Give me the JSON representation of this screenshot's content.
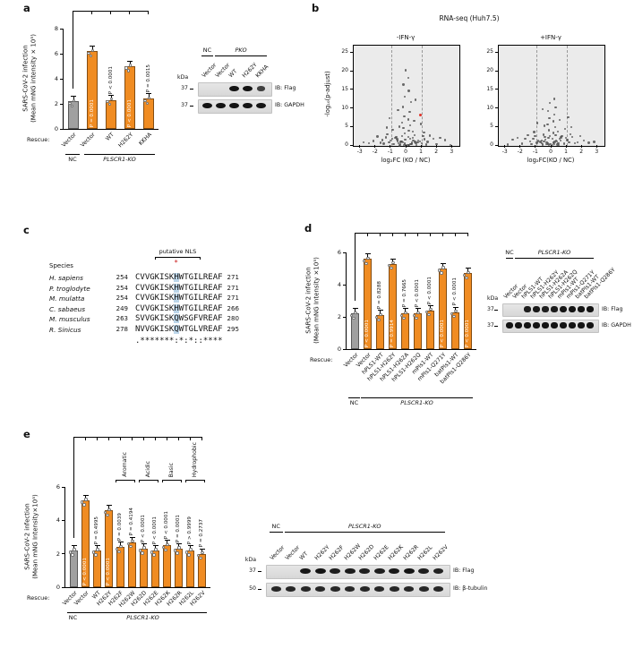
{
  "figure": {
    "accent_orange": "#F08C22",
    "bar_gray": "#A0A0A0",
    "highlight_blue": "#BCD6EA",
    "band_color": "#141414",
    "volcano_bg": "#EBEBEB"
  },
  "panel_a": {
    "label": "a",
    "chart": {
      "type": "bar",
      "ylabel_line1": "SARS-CoV-2 infection",
      "ylabel_line2": "(Mean mNG intensity × 10⁵)",
      "ymax": 8,
      "yticks": [
        0,
        2,
        4,
        6,
        8
      ],
      "categories": [
        "Vector",
        "Vector",
        "WT",
        "H262Y",
        "KKHA"
      ],
      "values": [
        2.2,
        6.2,
        2.3,
        5.0,
        2.4
      ],
      "colors": [
        "gray",
        "orange",
        "orange",
        "orange",
        "orange"
      ],
      "p_values": [
        null,
        "P = 0.0001",
        "P < 0.0001",
        "P < 0.0001",
        "P = 0.0015"
      ],
      "p_inside": [
        false,
        true,
        false,
        true,
        false
      ],
      "rescue_label": "Rescue:",
      "groups": [
        {
          "label": "NC",
          "italic": false,
          "from": 0,
          "to": 0
        },
        {
          "label": "PLSCR1-KO",
          "italic": true,
          "from": 1,
          "to": 4
        }
      ]
    },
    "blot": {
      "group_labels": [
        {
          "label": "NC",
          "italic": false,
          "from": 0,
          "to": 0
        },
        {
          "label": "PKO",
          "italic": true,
          "from": 1,
          "to": 4
        }
      ],
      "lanes": [
        "Vector",
        "Vector",
        "WT",
        "H262Y",
        "KKHA"
      ],
      "kda_header": "kDa",
      "strips": [
        {
          "kda": "37",
          "ib": "IB: Flag",
          "bands": [
            0,
            0,
            1,
            1,
            0.55
          ]
        },
        {
          "kda": "37",
          "ib": "IB: GAPDH",
          "bands": [
            1,
            1,
            1,
            1,
            1
          ]
        }
      ]
    }
  },
  "panel_b": {
    "label": "b",
    "title": "RNA-seq (Huh7.5)",
    "ylabel": "-log₁₀(p-adjust)",
    "plots": [
      {
        "title": "-IFN-γ",
        "xlabel": "log₂FC (KO / NC)",
        "xlim": [
          -3.45,
          3.45
        ],
        "ylim": [
          0,
          27
        ],
        "xticks": [
          -3,
          -2,
          -1,
          0,
          1,
          2,
          3
        ],
        "yticks": [
          0,
          5,
          10,
          15,
          20,
          25
        ],
        "vlines": [
          -1,
          1
        ],
        "points": [
          [
            -0.05,
            0.1
          ],
          [
            0.08,
            0.3
          ],
          [
            -0.12,
            0.6
          ],
          [
            0.15,
            0.2
          ],
          [
            -0.22,
            0.9
          ],
          [
            0.26,
            0.5
          ],
          [
            -0.31,
            1.2
          ],
          [
            0.34,
            0.8
          ],
          [
            -0.42,
            0.4
          ],
          [
            0.45,
            1.5
          ],
          [
            -0.52,
            0.7
          ],
          [
            0.55,
            1.1
          ],
          [
            -0.62,
            1.8
          ],
          [
            0.65,
            0.3
          ],
          [
            -0.72,
            2.1
          ],
          [
            0.75,
            1.4
          ],
          [
            -0.08,
            1.7
          ],
          [
            0.12,
            2.4
          ],
          [
            -0.18,
            0.25
          ],
          [
            0.22,
            1.9
          ],
          [
            -0.28,
            2.7
          ],
          [
            0.32,
            0.45
          ],
          [
            -0.38,
            1.05
          ],
          [
            0.42,
            2.2
          ],
          [
            -0.48,
            0.15
          ],
          [
            0.52,
            2.9
          ],
          [
            -0.58,
            1.35
          ],
          [
            0.62,
            0.65
          ],
          [
            -0.68,
            2.45
          ],
          [
            0.72,
            0.95
          ],
          [
            -0.85,
            0.5
          ],
          [
            0.88,
            1.2
          ],
          [
            -0.95,
            2.0
          ],
          [
            0.98,
            0.7
          ],
          [
            -1.05,
            1.5
          ],
          [
            1.08,
            2.6
          ],
          [
            -1.15,
            0.9
          ],
          [
            1.18,
            1.8
          ],
          [
            -1.25,
            3.1
          ],
          [
            1.28,
            0.4
          ],
          [
            -1.35,
            2.3
          ],
          [
            1.38,
            1.1
          ],
          [
            -1.48,
            0.6
          ],
          [
            1.52,
            2.8
          ],
          [
            -1.58,
            1.6
          ],
          [
            -1.7,
            0.8
          ],
          [
            1.75,
            1.9
          ],
          [
            -1.9,
            2.5
          ],
          [
            1.95,
            0.5
          ],
          [
            -2.15,
            1.3
          ],
          [
            2.2,
            2.1
          ],
          [
            -2.45,
            0.7
          ],
          [
            2.5,
            1.6
          ],
          [
            -2.8,
            1.0
          ],
          [
            2.85,
            0.3
          ],
          [
            -0.1,
            3.4
          ],
          [
            0.15,
            4.1
          ],
          [
            -0.2,
            4.8
          ],
          [
            0.25,
            5.6
          ],
          [
            -0.3,
            6.3
          ],
          [
            0.1,
            7.1
          ],
          [
            -0.15,
            8.0
          ],
          [
            0.2,
            9.2
          ],
          [
            -0.25,
            10.5
          ],
          [
            0.3,
            11.8
          ],
          [
            -0.1,
            13.2
          ],
          [
            0.15,
            14.8
          ],
          [
            -0.2,
            16.5
          ],
          [
            0.1,
            18.3
          ],
          [
            -0.05,
            20.4
          ],
          [
            0.4,
            3.8
          ],
          [
            -0.45,
            5.2
          ],
          [
            0.5,
            6.8
          ],
          [
            -0.55,
            9.6
          ],
          [
            0.6,
            12.4
          ],
          [
            -0.9,
            4.4
          ],
          [
            0.95,
            5.9
          ],
          [
            -1.1,
            7.4
          ],
          [
            1.15,
            3.6
          ],
          [
            -1.3,
            4.9
          ]
        ],
        "red_points": [
          [
            0.92,
            8.2
          ]
        ]
      },
      {
        "title": "+IFN-γ",
        "xlabel": "log₂FC(KO / NC)",
        "xlim": [
          -3.45,
          3.45
        ],
        "ylim": [
          0,
          27
        ],
        "xticks": [
          -3,
          -2,
          -1,
          0,
          1,
          2,
          3
        ],
        "yticks": [
          0,
          5,
          10,
          15,
          20,
          25
        ],
        "vlines": [
          -1,
          1
        ],
        "points": [
          [
            0.06,
            0.2
          ],
          [
            -0.09,
            0.5
          ],
          [
            0.13,
            0.8
          ],
          [
            -0.16,
            0.3
          ],
          [
            0.21,
            1.1
          ],
          [
            -0.24,
            0.6
          ],
          [
            0.29,
            1.4
          ],
          [
            -0.33,
            0.9
          ],
          [
            0.37,
            0.4
          ],
          [
            -0.41,
            1.7
          ],
          [
            0.44,
            0.7
          ],
          [
            -0.49,
            1.2
          ],
          [
            0.53,
            2.0
          ],
          [
            -0.57,
            0.35
          ],
          [
            0.61,
            2.3
          ],
          [
            -0.66,
            1.5
          ],
          [
            0.07,
            1.9
          ],
          [
            -0.11,
            2.6
          ],
          [
            0.17,
            0.45
          ],
          [
            -0.21,
            2.1
          ],
          [
            0.27,
            2.9
          ],
          [
            -0.31,
            0.55
          ],
          [
            0.36,
            1.25
          ],
          [
            -0.44,
            2.4
          ],
          [
            0.47,
            0.18
          ],
          [
            -0.54,
            3.0
          ],
          [
            0.58,
            1.45
          ],
          [
            -0.63,
            0.75
          ],
          [
            0.67,
            2.6
          ],
          [
            -0.73,
            1.05
          ],
          [
            0.82,
            0.6
          ],
          [
            -0.87,
            1.3
          ],
          [
            0.93,
            2.1
          ],
          [
            -0.97,
            0.8
          ],
          [
            1.03,
            1.6
          ],
          [
            -1.09,
            2.7
          ],
          [
            1.13,
            1.0
          ],
          [
            -1.19,
            1.9
          ],
          [
            1.24,
            3.2
          ],
          [
            -1.31,
            0.5
          ],
          [
            1.36,
            2.4
          ],
          [
            -1.42,
            1.2
          ],
          [
            1.51,
            0.7
          ],
          [
            -1.55,
            2.9
          ],
          [
            1.68,
            0.9
          ],
          [
            -1.73,
            2.0
          ],
          [
            1.88,
            2.6
          ],
          [
            -1.93,
            0.6
          ],
          [
            2.12,
            1.4
          ],
          [
            -2.22,
            2.2
          ],
          [
            2.42,
            0.8
          ],
          [
            -2.55,
            1.7
          ],
          [
            2.78,
            1.1
          ],
          [
            -2.85,
            0.4
          ],
          [
            0.12,
            3.5
          ],
          [
            -0.17,
            4.2
          ],
          [
            0.22,
            5.0
          ],
          [
            -0.27,
            5.8
          ],
          [
            0.11,
            6.6
          ],
          [
            -0.14,
            7.5
          ],
          [
            0.19,
            8.4
          ],
          [
            -0.23,
            9.4
          ],
          [
            0.27,
            10.4
          ],
          [
            -0.12,
            11.5
          ],
          [
            0.16,
            12.7
          ],
          [
            0.42,
            3.9
          ],
          [
            -0.47,
            5.4
          ],
          [
            0.52,
            7.0
          ],
          [
            -0.57,
            9.9
          ],
          [
            0.88,
            4.6
          ],
          [
            -0.93,
            6.1
          ],
          [
            1.08,
            7.7
          ],
          [
            -1.13,
            3.7
          ],
          [
            1.28,
            5.1
          ]
        ],
        "red_points": []
      }
    ]
  },
  "panel_c": {
    "label": "c",
    "species_header": "Species",
    "nls_label": "putative NLS",
    "star": "*",
    "highlight_index": 8,
    "rows": [
      {
        "species": "H. sapiens",
        "start": "254",
        "seq": "CVVGKISKHWTGILREAF",
        "end": "271"
      },
      {
        "species": "P. troglodyte",
        "start": "254",
        "seq": "CVVGKISKHWTGILREAF",
        "end": "271"
      },
      {
        "species": "M. mulatta",
        "start": "254",
        "seq": "CVVGKISKHWTGILREAF",
        "end": "271"
      },
      {
        "species": "C. sabaeus",
        "start": "249",
        "seq": "CVVGKISKHWTGILREAF",
        "end": "266"
      },
      {
        "species": "M. musculus",
        "start": "263",
        "seq": "SVVGKISKQWSGFVREAF",
        "end": "280"
      },
      {
        "species": "R. Sinicus",
        "start": "278",
        "seq": "NVVGKISKQWTGLVREAF",
        "end": "295"
      }
    ],
    "consensus": ".*******:*:*::****"
  },
  "panel_d": {
    "label": "d",
    "chart": {
      "type": "bar",
      "ylabel_line1": "SARS-CoV-2 infection",
      "ylabel_line2": "(Mean mNG Intensity ×10⁵)",
      "ymax": 6,
      "yticks": [
        0,
        2,
        4,
        6
      ],
      "categories": [
        "Vector",
        "Vector",
        "hPLS1-WT",
        "hPLS1-H262Y",
        "hPLS1-H262A",
        "hPLS1-H262Q",
        "mPls1-WT",
        "mPls1-Q271Y",
        "batPls1-WT",
        "batPls1-Q286Y"
      ],
      "values": [
        2.2,
        5.6,
        2.1,
        5.3,
        2.2,
        2.2,
        2.4,
        5.0,
        2.3,
        4.7
      ],
      "colors": [
        "gray",
        "orange",
        "orange",
        "orange",
        "orange",
        "orange",
        "orange",
        "orange",
        "orange",
        "orange"
      ],
      "p_values": [
        null,
        "P < 0.0001",
        "P = 0.8288",
        "P = 0.9914",
        "P = 0.7665",
        "P < 0.0001",
        "P < 0.0001",
        "P < 0.0001",
        "P < 0.0001",
        "P < 0.0001"
      ],
      "p_inside": [
        false,
        true,
        false,
        true,
        false,
        false,
        false,
        true,
        false,
        true
      ],
      "rescue_label": "Rescue:",
      "groups": [
        {
          "label": "NC",
          "italic": false,
          "from": 0,
          "to": 0
        },
        {
          "label": "PLSCR1-KO",
          "italic": true,
          "from": 1,
          "to": 9
        }
      ]
    },
    "blot": {
      "group_labels": [
        {
          "label": "NC",
          "italic": false,
          "from": 0,
          "to": 0
        },
        {
          "label": "PLSCR1-KO",
          "italic": true,
          "from": 1,
          "to": 9
        }
      ],
      "lanes": [
        "Vector",
        "Vector",
        "hPLS1-WT",
        "hPLS1-H262Y",
        "hPLS1-H262A",
        "hPLS1-H262Q",
        "mPls1-WT",
        "mPls1-Q271Y",
        "batPls1-WT",
        "batPls1-Q286Y"
      ],
      "kda_header": "kDa",
      "strips": [
        {
          "kda": "37",
          "ib": "IB: Flag",
          "bands": [
            0,
            0,
            0.9,
            0.95,
            0.9,
            0.92,
            1.25,
            1.3,
            1.0,
            1.05
          ]
        },
        {
          "kda": "37",
          "ib": "IB: GAPDH",
          "bands": [
            1,
            1,
            1,
            1,
            1,
            1,
            1,
            1,
            1,
            1
          ]
        }
      ]
    }
  },
  "panel_e": {
    "label": "e",
    "chart": {
      "type": "bar",
      "ylabel_line1": "SARS-CoV-2 infection",
      "ylabel_line2": "(Mean mNG Intensity×10⁵)",
      "ymax": 6,
      "yticks": [
        0,
        2,
        4,
        6
      ],
      "categories": [
        "Vector",
        "Vector",
        "WT",
        "H262Y",
        "H262F",
        "H262W",
        "H262D",
        "H262E",
        "H262K",
        "H262R",
        "H262L",
        "H262V"
      ],
      "values": [
        2.2,
        5.2,
        2.2,
        4.6,
        2.4,
        2.7,
        2.3,
        2.2,
        2.5,
        2.3,
        2.2,
        2.0
      ],
      "colors": [
        "gray",
        "orange",
        "orange",
        "orange",
        "orange",
        "orange",
        "orange",
        "orange",
        "orange",
        "orange",
        "orange",
        "orange"
      ],
      "p_values": [
        null,
        "P < 0.0001",
        "P = 0.4995",
        "P < 0.0001",
        "P = 0.0039",
        "P = 0.4194",
        "P < 0.0001",
        "P < 0.0001",
        "P < 0.0001",
        "P = 0.0001",
        "P > 0.9999",
        "P = 0.2737"
      ],
      "p_inside": [
        false,
        true,
        false,
        true,
        false,
        false,
        false,
        false,
        false,
        false,
        false,
        false
      ],
      "aa_groups": [
        {
          "label": "Aromatic",
          "from": 4,
          "to": 5
        },
        {
          "label": "Acidic",
          "from": 6,
          "to": 7
        },
        {
          "label": "Basic",
          "from": 8,
          "to": 9
        },
        {
          "label": "Hydrophobic",
          "from": 10,
          "to": 11
        }
      ],
      "rescue_label": "Rescue:",
      "groups": [
        {
          "label": "NC",
          "italic": false,
          "from": 0,
          "to": 0
        },
        {
          "label": "PLSCR1-KO",
          "italic": true,
          "from": 1,
          "to": 11
        }
      ]
    },
    "blot": {
      "group_labels": [
        {
          "label": "NC",
          "italic": false,
          "from": 0,
          "to": 0
        },
        {
          "label": "PLSCR1-KO",
          "italic": true,
          "from": 1,
          "to": 11
        }
      ],
      "lanes": [
        "Vector",
        "Vector",
        "WT",
        "H262Y",
        "H262F",
        "H262W",
        "H262D",
        "H262E",
        "H262K",
        "H262R",
        "H262L",
        "H262V"
      ],
      "kda_header": "kDa",
      "strips": [
        {
          "kda": "37",
          "ib": "IB: Flag",
          "bands": [
            0,
            0,
            0.95,
            1,
            0.9,
            0.92,
            0.88,
            0.9,
            0.95,
            1,
            0.9,
            0.85
          ]
        },
        {
          "kda": "50",
          "ib": "IB: β-tubulin",
          "bands": [
            0.8,
            0.8,
            0.8,
            0.8,
            0.8,
            0.8,
            0.8,
            0.8,
            0.8,
            0.8,
            0.8,
            0.8
          ]
        }
      ]
    }
  }
}
